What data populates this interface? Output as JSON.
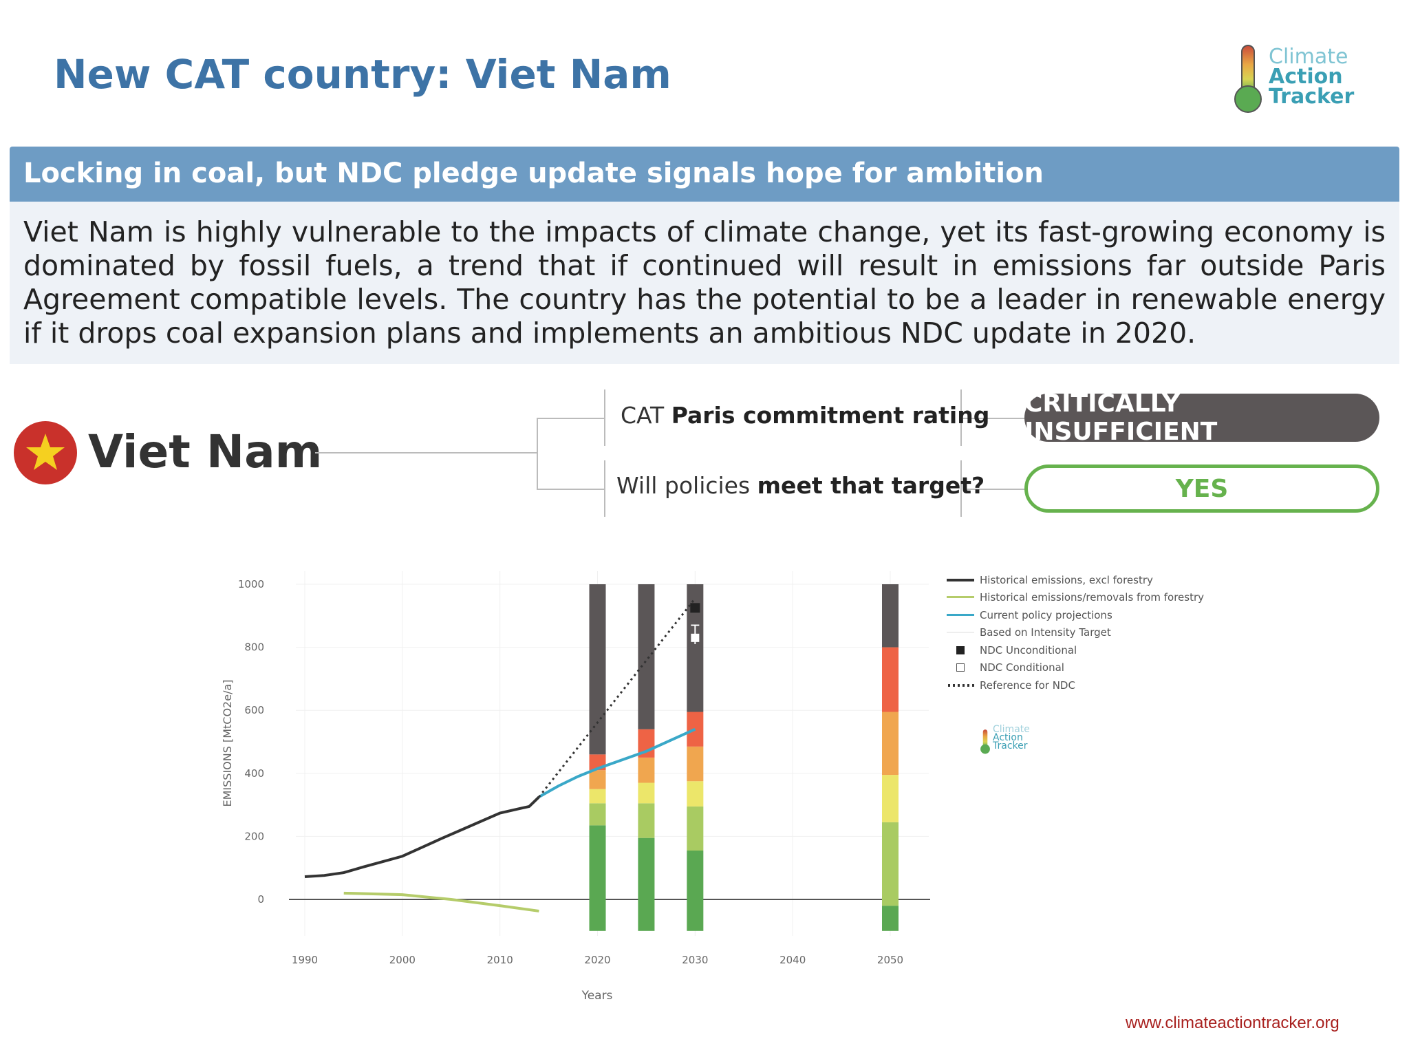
{
  "title": "New CAT country: Viet Nam",
  "logo": {
    "line1": "Climate",
    "line2": "Action",
    "line3": "Tracker"
  },
  "headline": "Locking in coal, but NDC pledge update signals hope for ambition",
  "summary": "Viet Nam is highly vulnerable to the impacts of climate change, yet its fast-growing economy is dominated by fossil fuels, a trend that if continued will result in emissions far outside Paris Agreement compatible levels.   The country has the potential to be a leader in renewable energy if it drops coal expansion plans and implements an ambitious NDC update in 2020.",
  "rating": {
    "country": "Viet Nam",
    "q1_pre": "CAT ",
    "q1_bold": "Paris commitment rating",
    "q2_pre": "Will policies ",
    "q2_bold": "meet that target?",
    "rating_value": "CRITICALLY INSUFFICIENT",
    "policy_value": "YES"
  },
  "source_url": "www.climateactiontracker.org",
  "chart_data": {
    "type": "line",
    "xlabel": "Years",
    "ylabel": "EMISSIONS [MtCO2e/a]",
    "xlim": [
      1990,
      2050
    ],
    "ylim": [
      -100,
      1000
    ],
    "xticks": [
      1990,
      2000,
      2010,
      2020,
      2030,
      2040,
      2050
    ],
    "yticks": [
      0,
      200,
      400,
      600,
      800,
      1000
    ],
    "legend": [
      "Historical emissions, excl forestry",
      "Historical emissions/removals from forestry",
      "Current policy projections",
      "Based on Intensity Target",
      "NDC Unconditional",
      "NDC Conditional",
      "Reference for NDC"
    ],
    "colors": {
      "historical": "#333333",
      "forestry": "#b5cc6a",
      "current": "#3aa8c8",
      "reference": "#333333",
      "bands": [
        "#5aa852",
        "#a9cb62",
        "#ece66a",
        "#f0a64f",
        "#ee6345",
        "#5b5657"
      ]
    },
    "series": [
      {
        "name": "Historical emissions, excl forestry",
        "x": [
          1990,
          1992,
          1994,
          1996,
          1998,
          2000,
          2002,
          2004,
          2006,
          2008,
          2010,
          2012,
          2013,
          2014
        ],
        "y": [
          72,
          76,
          85,
          103,
          120,
          137,
          165,
          193,
          220,
          247,
          274,
          288,
          295,
          325
        ]
      },
      {
        "name": "Historical emissions/removals from forestry",
        "x": [
          1994,
          2000,
          2005,
          2010,
          2014
        ],
        "y": [
          20,
          15,
          0,
          -20,
          -37
        ]
      },
      {
        "name": "Current policy projections",
        "x": [
          2014,
          2016,
          2018,
          2020,
          2025,
          2030
        ],
        "y": [
          325,
          360,
          390,
          415,
          470,
          540
        ]
      },
      {
        "name": "Reference for NDC",
        "x": [
          2014,
          2030
        ],
        "y": [
          325,
          955
        ]
      }
    ],
    "points": [
      {
        "name": "NDC Unconditional",
        "x": 2030,
        "y": 925
      },
      {
        "name": "NDC Conditional",
        "x": 2030,
        "y": 830,
        "err": [
          810,
          870
        ]
      }
    ],
    "rating_bars": [
      {
        "year": 2020,
        "bounds": [
          -100,
          235,
          305,
          350,
          410,
          460,
          1000
        ]
      },
      {
        "year": 2025,
        "bounds": [
          -100,
          195,
          305,
          370,
          450,
          540,
          1000
        ]
      },
      {
        "year": 2030,
        "bounds": [
          -100,
          155,
          295,
          375,
          485,
          595,
          1000
        ]
      },
      {
        "year": 2050,
        "bounds": [
          -100,
          -20,
          245,
          395,
          595,
          800,
          1000
        ]
      }
    ]
  }
}
